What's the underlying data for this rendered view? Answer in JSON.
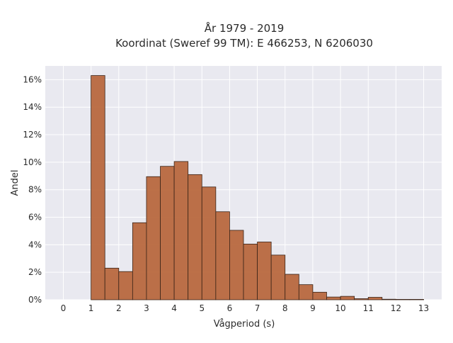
{
  "chart_data": {
    "type": "bar",
    "title_lines": [
      "År 1979 - 2019",
      "Koordinat (Sweref 99 TM): E 466253, N 6206030"
    ],
    "xlabel": "Vågperiod (s)",
    "ylabel": "Andel",
    "bin_width": 0.5,
    "bins": [
      {
        "x": 1.0,
        "value": 16.3
      },
      {
        "x": 1.5,
        "value": 2.3
      },
      {
        "x": 2.0,
        "value": 2.05
      },
      {
        "x": 2.5,
        "value": 5.6
      },
      {
        "x": 3.0,
        "value": 8.95
      },
      {
        "x": 3.5,
        "value": 9.7
      },
      {
        "x": 4.0,
        "value": 10.05
      },
      {
        "x": 4.5,
        "value": 9.1
      },
      {
        "x": 5.0,
        "value": 8.2
      },
      {
        "x": 5.5,
        "value": 6.4
      },
      {
        "x": 6.0,
        "value": 5.05
      },
      {
        "x": 6.5,
        "value": 4.05
      },
      {
        "x": 7.0,
        "value": 4.2
      },
      {
        "x": 7.5,
        "value": 3.25
      },
      {
        "x": 8.0,
        "value": 1.85
      },
      {
        "x": 8.5,
        "value": 1.1
      },
      {
        "x": 9.0,
        "value": 0.55
      },
      {
        "x": 9.5,
        "value": 0.2
      },
      {
        "x": 10.0,
        "value": 0.25
      },
      {
        "x": 10.5,
        "value": 0.08
      },
      {
        "x": 11.0,
        "value": 0.18
      },
      {
        "x": 11.5,
        "value": 0.04
      },
      {
        "x": 12.0,
        "value": 0.03
      },
      {
        "x": 12.5,
        "value": 0.03
      }
    ],
    "xlim": [
      -0.65,
      13.65
    ],
    "ylim": [
      0,
      17
    ],
    "xticks": [
      0,
      1,
      2,
      3,
      4,
      5,
      6,
      7,
      8,
      9,
      10,
      11,
      12,
      13
    ],
    "yticks": [
      0,
      2,
      4,
      6,
      8,
      10,
      12,
      14,
      16
    ],
    "ytick_labels": [
      "0%",
      "2%",
      "4%",
      "6%",
      "8%",
      "10%",
      "12%",
      "14%",
      "16%"
    ],
    "grid": true,
    "bar_color": "#b8683e",
    "bar_edge_color": "#3a2418",
    "background_color": "#e9e9f0",
    "grid_color": "#ffffff"
  }
}
